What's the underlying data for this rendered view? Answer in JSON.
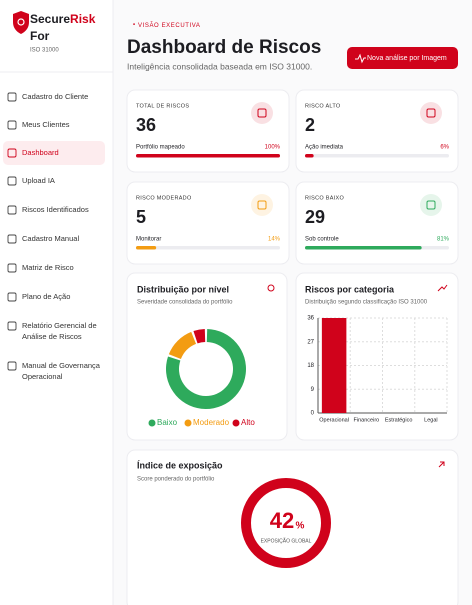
{
  "sidebar": {
    "brand_a": "Secure",
    "brand_b": "Risk",
    "brand_c": "For",
    "brand_sub": "ISO 31000",
    "nav": [
      "Cadastro do Cliente",
      "Meus Clientes",
      "Dashboard",
      "Upload IA",
      "Riscos Identificados",
      "Cadastro Manual",
      "Matriz de Risco",
      "Plano de Ação",
      [
        "Relatório Gerencial de",
        "Análise de Riscos"
      ],
      [
        "Manual de Governança",
        "Operacional"
      ]
    ],
    "active": 2
  },
  "header": {
    "eyebrow": "VISÃO EXECUTIVA",
    "title": "Dashboard de Riscos",
    "subtitle": "Inteligência consolidada baseada em ISO 31000.",
    "button": "Nova análise por Imagem"
  },
  "kpis": [
    {
      "label": "TOTAL DE RISCOS",
      "value": 36,
      "caption": "Portfólio mapeado",
      "percent": 100,
      "percent_label": "100%",
      "color": "#d0021b"
    },
    {
      "label": "RISCO ALTO",
      "value": 2,
      "caption": "Ação imediata",
      "percent": 6,
      "percent_label": "6%",
      "color": "#d0021b"
    },
    {
      "label": "RISCO MODERADO",
      "value": 5,
      "caption": "Monitorar",
      "percent": 14,
      "percent_label": "14%",
      "color": "#f39c12"
    },
    {
      "label": "RISCO BAIXO",
      "value": 29,
      "caption": "Sob controle",
      "percent": 81,
      "percent_label": "81%",
      "color": "#2eaa5c"
    }
  ],
  "chart_data": [
    {
      "type": "pie",
      "title": "Distribuição por nível",
      "subtitle": "Severidade consolidada do portfólio",
      "categories": [
        "Baixo",
        "Moderado",
        "Alto"
      ],
      "values": [
        29,
        5,
        2
      ],
      "colors": [
        "#2eaa5c",
        "#f39c12",
        "#d0021b"
      ]
    },
    {
      "type": "bar",
      "title": "Riscos por categoria",
      "subtitle": "Distribuição segundo classificação ISO 31000",
      "categories": [
        "Operacional",
        "Financeiro",
        "Estratégico",
        "Legal"
      ],
      "values": [
        36,
        0,
        0,
        0
      ],
      "color": "#d0021b",
      "ylim": [
        0,
        36
      ],
      "yticks": [
        0,
        9,
        18,
        27,
        36
      ],
      "grid": true
    }
  ],
  "exposure": {
    "title": "Índice de exposição",
    "subtitle": "Score ponderado do portfólio",
    "value": 42,
    "unit": "%",
    "caption": "EXPOSIÇÃO GLOBAL"
  }
}
